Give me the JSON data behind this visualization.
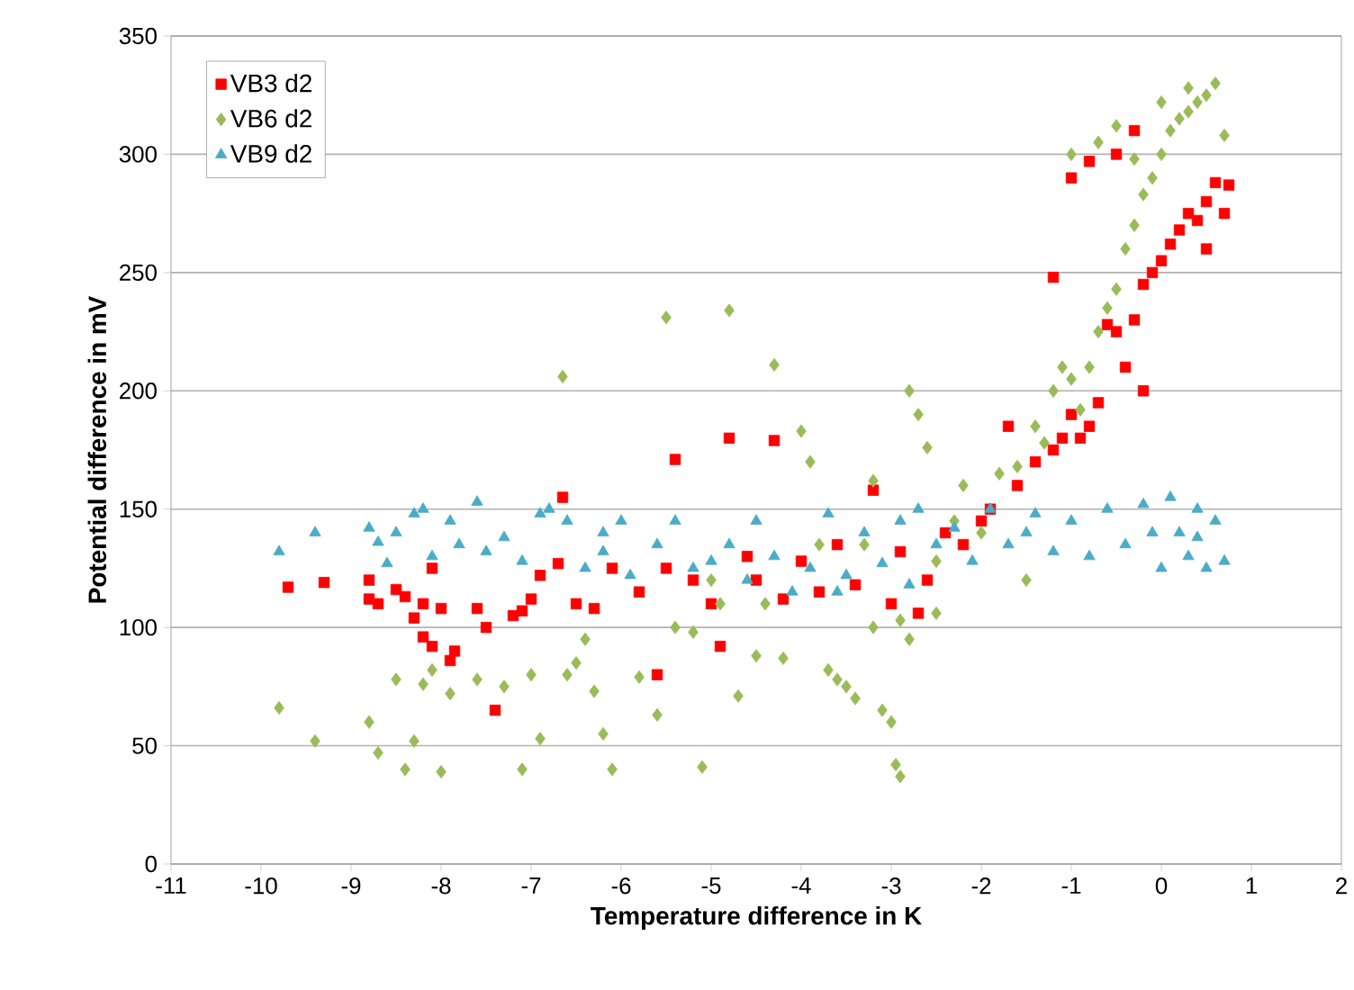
{
  "chart_data": {
    "type": "scatter",
    "xlabel": "Temperature difference in  K",
    "ylabel": "Potential difference in mV",
    "xlim": [
      -11,
      2
    ],
    "xticks": [
      -11,
      -10,
      -9,
      -8,
      -7,
      -6,
      -5,
      -4,
      -3,
      -2,
      -1,
      0,
      1,
      2
    ],
    "ylim": [
      0,
      350
    ],
    "yticks": [
      0,
      50,
      100,
      150,
      200,
      250,
      300,
      350
    ],
    "grid": "y",
    "legend": "top left",
    "series": [
      {
        "name": "VB3 d2",
        "color": "#ff0000",
        "marker": "square",
        "x": [
          -9.7,
          -9.3,
          -8.8,
          -8.8,
          -8.7,
          -8.5,
          -8.4,
          -8.3,
          -8.2,
          -8.1,
          -8.2,
          -8.0,
          -7.9,
          -7.85,
          -8.1,
          -7.6,
          -7.4,
          -7.5,
          -7.2,
          -7.1,
          -7.0,
          -6.9,
          -6.7,
          -6.65,
          -6.5,
          -6.3,
          -6.1,
          -5.8,
          -5.6,
          -5.5,
          -5.4,
          -5.2,
          -5.0,
          -4.9,
          -4.8,
          -4.6,
          -4.5,
          -4.3,
          -4.2,
          -4.0,
          -3.8,
          -3.6,
          -3.4,
          -3.2,
          -3.0,
          -2.9,
          -2.7,
          -2.6,
          -2.4,
          -2.2,
          -2.0,
          -1.9,
          -1.7,
          -1.6,
          -1.4,
          -1.2,
          -1.2,
          -1.1,
          -1.0,
          -0.9,
          -0.8,
          -0.7,
          -0.5,
          -0.4,
          -0.3,
          -0.2,
          -0.1,
          0.0,
          0.1,
          0.2,
          0.3,
          0.4,
          0.5,
          0.6,
          0.7,
          0.5,
          -1.0,
          -0.8,
          -0.5,
          -0.3,
          -0.6,
          0.75,
          -0.2
        ],
        "values": [
          117,
          119,
          120,
          112,
          110,
          116,
          113,
          104,
          96,
          92,
          110,
          108,
          86,
          90,
          125,
          108,
          65,
          100,
          105,
          107,
          112,
          122,
          127,
          155,
          110,
          108,
          125,
          115,
          80,
          125,
          171,
          120,
          110,
          92,
          180,
          130,
          120,
          179,
          112,
          128,
          115,
          135,
          118,
          158,
          110,
          132,
          106,
          120,
          140,
          135,
          145,
          150,
          185,
          160,
          170,
          248,
          175,
          180,
          190,
          180,
          185,
          195,
          225,
          210,
          230,
          245,
          250,
          255,
          262,
          268,
          275,
          272,
          280,
          288,
          275,
          260,
          290,
          297,
          300,
          310,
          228,
          287,
          200
        ]
      },
      {
        "name": "VB6 d2",
        "color": "#9bbb59",
        "marker": "diamond",
        "x": [
          -9.8,
          -9.4,
          -8.8,
          -8.7,
          -8.5,
          -8.4,
          -8.3,
          -8.2,
          -8.1,
          -8.0,
          -7.9,
          -7.6,
          -7.3,
          -7.1,
          -7.0,
          -6.9,
          -6.65,
          -6.6,
          -6.5,
          -6.3,
          -6.2,
          -6.1,
          -5.8,
          -5.6,
          -5.5,
          -5.4,
          -5.2,
          -5.1,
          -5.0,
          -4.8,
          -4.7,
          -4.5,
          -4.4,
          -4.3,
          -4.2,
          -4.0,
          -3.9,
          -3.8,
          -3.7,
          -3.6,
          -3.5,
          -3.4,
          -3.2,
          -3.1,
          -3.0,
          -2.95,
          -2.9,
          -2.8,
          -2.8,
          -2.7,
          -2.6,
          -2.5,
          -2.3,
          -2.2,
          -2.0,
          -1.8,
          -1.6,
          -1.5,
          -1.4,
          -1.3,
          -1.2,
          -1.1,
          -1.0,
          -0.9,
          -0.8,
          -0.7,
          -0.6,
          -0.5,
          -0.4,
          -0.3,
          -0.2,
          -0.1,
          0.0,
          0.1,
          0.2,
          0.3,
          0.4,
          0.5,
          0.6,
          0.7,
          -1.0,
          -0.7,
          -0.5,
          -0.3,
          0.0,
          0.3,
          -2.9,
          -3.2,
          -4.9,
          -6.4,
          -3.3,
          -2.5
        ],
        "values": [
          66,
          52,
          60,
          47,
          78,
          40,
          52,
          76,
          82,
          39,
          72,
          78,
          75,
          40,
          80,
          53,
          206,
          80,
          85,
          73,
          55,
          40,
          79,
          63,
          231,
          100,
          98,
          41,
          120,
          234,
          71,
          88,
          110,
          211,
          87,
          183,
          170,
          135,
          82,
          78,
          75,
          70,
          162,
          65,
          60,
          42,
          37,
          200,
          95,
          190,
          176,
          128,
          145,
          160,
          140,
          165,
          168,
          120,
          185,
          178,
          200,
          210,
          205,
          192,
          210,
          225,
          235,
          243,
          260,
          270,
          283,
          290,
          300,
          310,
          315,
          318,
          322,
          325,
          330,
          308,
          300,
          305,
          312,
          298,
          322,
          328,
          103,
          100,
          110,
          95,
          135,
          106
        ]
      },
      {
        "name": "VB9 d2",
        "color": "#4bacc6",
        "marker": "triangle",
        "x": [
          -9.8,
          -9.4,
          -8.8,
          -8.7,
          -8.5,
          -8.3,
          -8.2,
          -8.1,
          -7.9,
          -7.8,
          -7.5,
          -7.3,
          -7.1,
          -6.9,
          -6.8,
          -6.6,
          -6.4,
          -6.2,
          -6.0,
          -5.9,
          -5.6,
          -5.4,
          -5.2,
          -5.0,
          -4.8,
          -4.6,
          -4.5,
          -4.3,
          -4.1,
          -3.9,
          -3.7,
          -3.5,
          -3.3,
          -3.1,
          -2.9,
          -2.7,
          -2.5,
          -2.3,
          -2.1,
          -1.9,
          -1.7,
          -1.5,
          -1.4,
          -1.2,
          -1.0,
          -0.8,
          -0.6,
          -0.4,
          -0.2,
          0.0,
          0.1,
          0.2,
          0.3,
          0.4,
          0.5,
          0.6,
          0.7,
          -8.6,
          -7.6,
          -6.2,
          -3.6,
          -2.8,
          -0.1,
          0.4
        ],
        "values": [
          132,
          140,
          142,
          136,
          140,
          148,
          150,
          130,
          145,
          135,
          132,
          138,
          128,
          148,
          150,
          145,
          125,
          132,
          145,
          122,
          135,
          145,
          125,
          128,
          135,
          120,
          145,
          130,
          115,
          125,
          148,
          122,
          140,
          127,
          145,
          150,
          135,
          142,
          128,
          150,
          135,
          140,
          148,
          132,
          145,
          130,
          150,
          135,
          152,
          125,
          155,
          140,
          130,
          150,
          125,
          145,
          128,
          127,
          153,
          140,
          115,
          118,
          140,
          138
        ]
      }
    ]
  }
}
